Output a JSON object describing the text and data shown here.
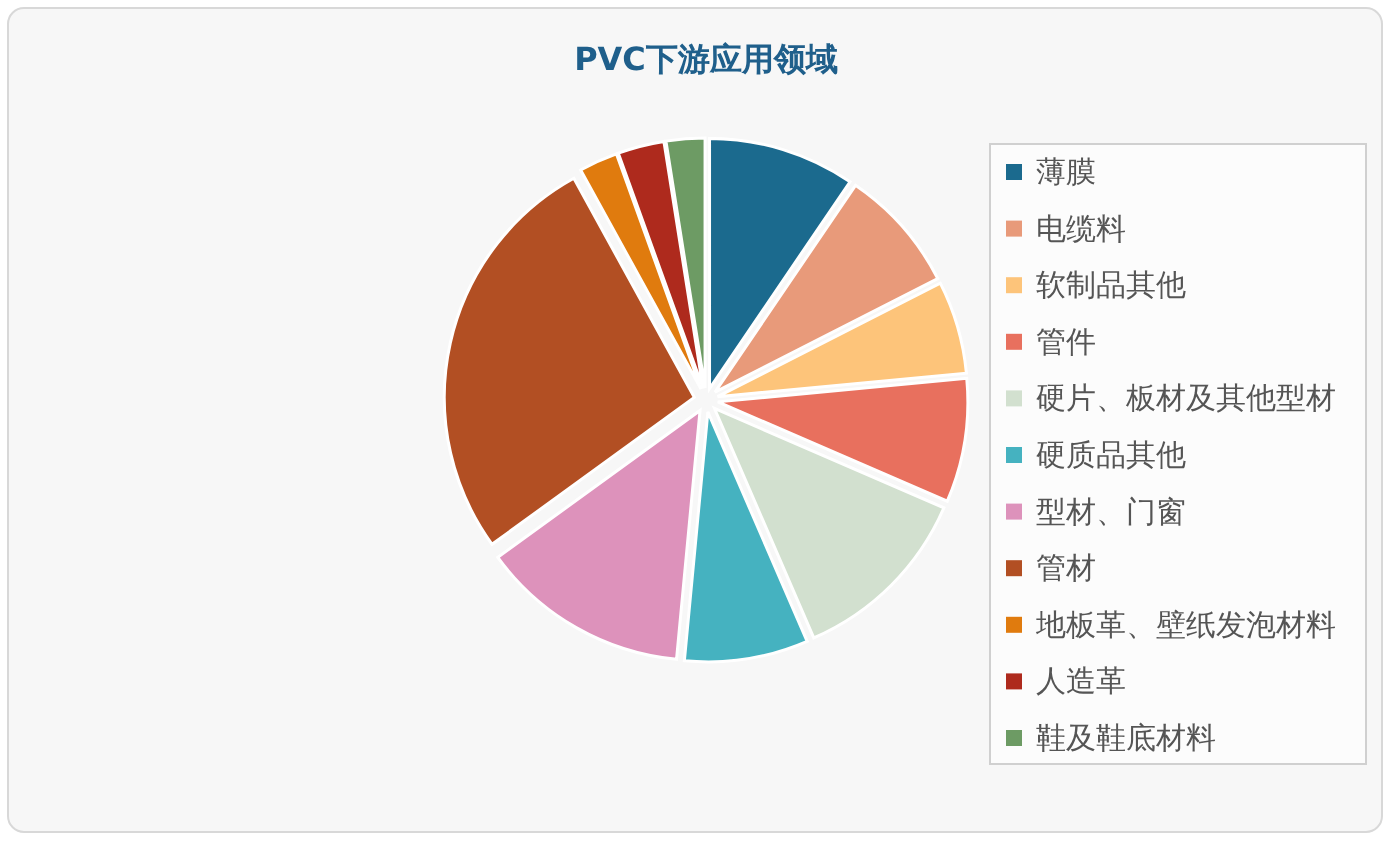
{
  "chart_data": {
    "type": "pie",
    "title": "PVC下游应用领域",
    "categories": [
      "薄膜",
      "电缆料",
      "软制品其他",
      "管件",
      "硬片、板材及其他型材",
      "硬质品其他",
      "型材、门窗",
      "管材",
      "地板革、壁纸发泡材料",
      "人造革",
      "鞋及鞋底材料"
    ],
    "values": [
      9.5,
      8,
      6,
      8,
      12,
      8,
      13.5,
      27,
      2.5,
      3,
      2.5
    ],
    "colors": [
      "#1b6a8e",
      "#e89a7a",
      "#fdc47a",
      "#e8705e",
      "#d2e0cf",
      "#45b2c0",
      "#dd92bb",
      "#b24f23",
      "#e07b0e",
      "#ae2a1d",
      "#6d9b64"
    ],
    "legend": "right"
  }
}
